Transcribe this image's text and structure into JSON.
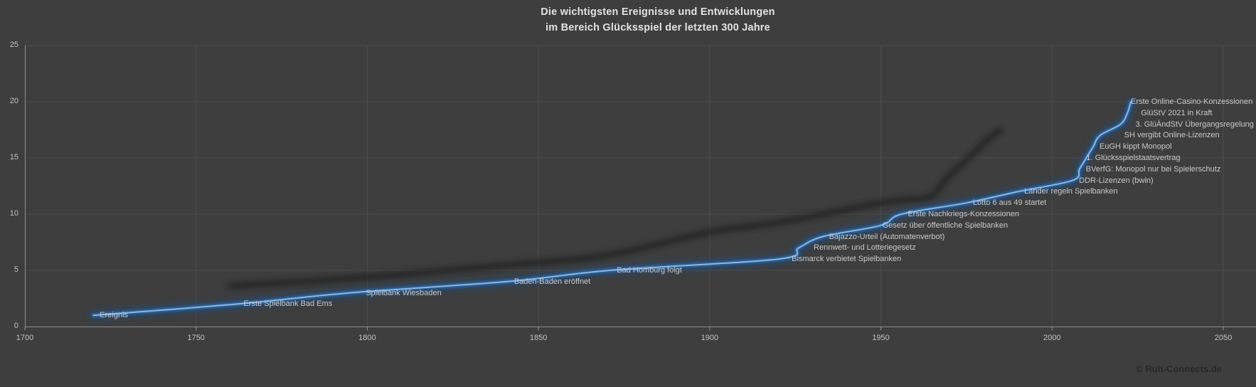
{
  "title": {
    "line1": "Die wichtigsten Ereignisse und Entwicklungen",
    "line2": "im Bereich Glücksspiel der letzten 300 Jahre"
  },
  "footer": {
    "copyright": "© Ruh-Connects.de"
  },
  "colors": {
    "background": "#3e3e3e",
    "grid": "#4e4e4e",
    "axis": "#8f8f8f",
    "title_text": "#e2e2e2",
    "tick_text": "#c4c4c4",
    "label_text": "#c9c9c9",
    "line_core": "#8ab6e4",
    "line_mid": "#2f6ba8",
    "line_glow": "#1c4e82",
    "shadow_line": "#222222",
    "copyright_text": "#272727"
  },
  "chart_data": {
    "type": "line",
    "title": "Die wichtigsten Ereignisse und Entwicklungen im Bereich Glücksspiel der letzten 300 Jahre",
    "xlabel": "",
    "ylabel": "",
    "grid": true,
    "legend": false,
    "x_axis": {
      "min": 1700,
      "max": 2050,
      "ticks": [
        1700,
        1750,
        1800,
        1850,
        1900,
        1950,
        2000,
        2050
      ]
    },
    "y_axis": {
      "min": 0,
      "max": 25,
      "ticks": [
        0,
        5,
        10,
        15,
        20,
        25
      ]
    },
    "series": [
      {
        "name": "Ereignis",
        "style": "smooth-glow-blue",
        "points": [
          {
            "label": "Ereignis",
            "year": 1720,
            "value": 1
          },
          {
            "label": "Erste Spielbank Bad Ems",
            "year": 1762,
            "value": 2
          },
          {
            "label": "Spielbank Wiesbaden",
            "year": 1795,
            "value": 3,
            "dx": 13
          },
          {
            "label": "Baden-Baden eröffnet",
            "year": 1841,
            "value": 4
          },
          {
            "label": "Bad Homburg folgt",
            "year": 1871,
            "value": 5
          },
          {
            "label": "Bismarck verbietet Spielbanken",
            "year": 1920,
            "value": 6,
            "dx": 10
          },
          {
            "label": "Rennwett- und Lotteriegesetz",
            "year": 1926,
            "value": 7,
            "dx": 12
          },
          {
            "label": "Bajazzo-Urteil (Automatenverbot)",
            "year": 1933,
            "value": 8
          },
          {
            "label": "Gesetz über öffentliche Spielbanken",
            "year": 1950,
            "value": 9,
            "dx": -7
          },
          {
            "label": "Erste Nachkriegs-Konzessionen",
            "year": 1956,
            "value": 10
          },
          {
            "label": "Lotto 6 aus 49 startet",
            "year": 1975,
            "value": 11
          },
          {
            "label": "Länder regeln Spielbanken",
            "year": 1990,
            "value": 12
          },
          {
            "label": "DDR-Lizenzen (bwin)",
            "year": 2006,
            "value": 13
          },
          {
            "label": "BVerfG: Monopol nur bei Spielerschutz",
            "year": 2008,
            "value": 14
          },
          {
            "label": "1. Glücksspielstaatsvertrag",
            "year": 2010,
            "value": 15,
            "dx": -9
          },
          {
            "label": "EuGH kippt Monopol",
            "year": 2012,
            "value": 16
          },
          {
            "label": "SH vergibt Online-Lizenzen",
            "year": 2014,
            "value": 17,
            "dx": 25
          },
          {
            "label": "3. GlüÄndStV Übergangsregelung",
            "year": 2020,
            "value": 18,
            "dx": 12
          },
          {
            "label": "GlüStV 2021 in Kraft",
            "year": 2022,
            "value": 19,
            "dx": 10
          },
          {
            "label": "Erste Online-Casino-Konzessionen",
            "year": 2023,
            "value": 20,
            "dx": -9
          }
        ]
      },
      {
        "name": "trend-shadow",
        "style": "blurred-dark",
        "points_xy": [
          [
            1760,
            3.6
          ],
          [
            1800,
            4.4
          ],
          [
            1838,
            5.4
          ],
          [
            1869,
            6.3
          ],
          [
            1900,
            8.4
          ],
          [
            1921,
            9.3
          ],
          [
            1952,
            11.1
          ],
          [
            1964,
            11.5
          ],
          [
            1969,
            13.1
          ],
          [
            1977,
            15.4
          ],
          [
            1981,
            16.6
          ],
          [
            1985,
            17.5
          ]
        ]
      }
    ]
  }
}
